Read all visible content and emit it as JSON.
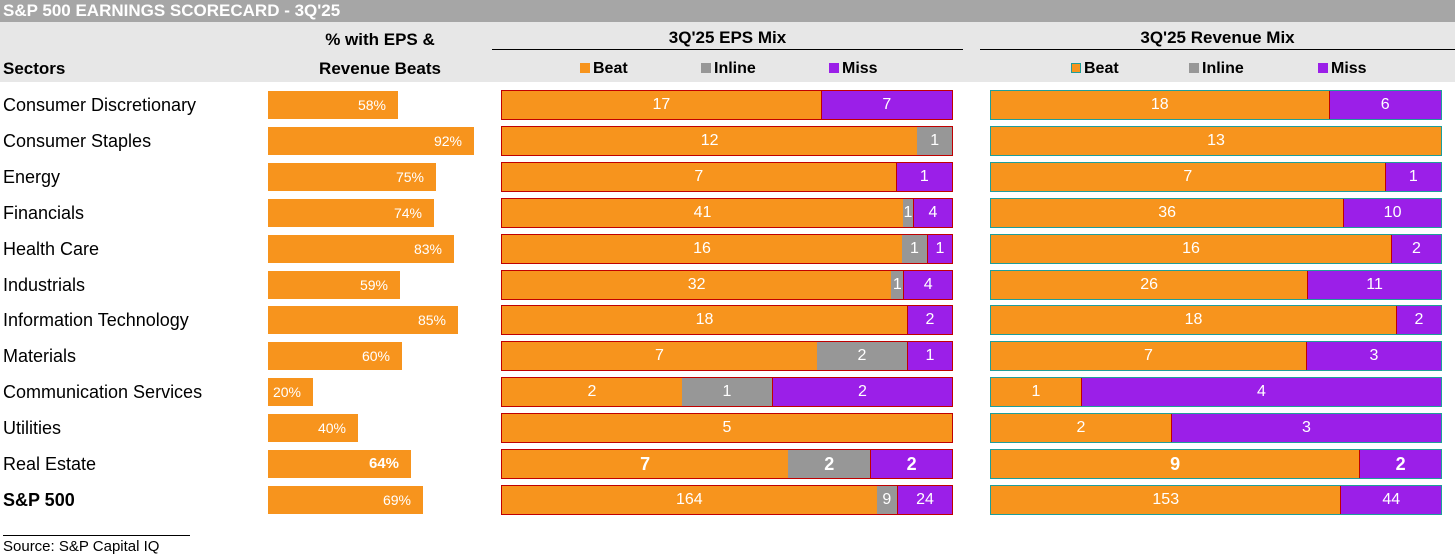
{
  "title": "S&P 500 EARNINGS SCORECARD - 3Q'25",
  "headers": {
    "sectors": "Sectors",
    "pct_line1": "% with EPS &",
    "pct_line2": "Revenue Beats",
    "eps_mix": "3Q'25 EPS Mix",
    "rev_mix": "3Q'25 Revenue Mix"
  },
  "legend": {
    "beat": "Beat",
    "inline": "Inline",
    "miss": "Miss"
  },
  "colors": {
    "beat": "#f7941d",
    "inline": "#979797",
    "miss": "#9b1fe8",
    "header_bar": "#a6a6a6",
    "band": "#e7e7e7"
  },
  "source": "Source: S&P Capital IQ",
  "chart_data": {
    "type": "bar",
    "title": "S&P 500 EARNINGS SCORECARD - 3Q'25",
    "categories": [
      "Consumer Discretionary",
      "Consumer Staples",
      "Energy",
      "Financials",
      "Health Care",
      "Industrials",
      "Information Technology",
      "Materials",
      "Communication Services",
      "Utilities",
      "Real Estate",
      "S&P 500"
    ],
    "rows": [
      {
        "sector": "Consumer Discretionary",
        "pct": 58,
        "pct_label": "58%",
        "eps": [
          17,
          0,
          7
        ],
        "rev": [
          18,
          0,
          6
        ]
      },
      {
        "sector": "Consumer Staples",
        "pct": 92,
        "pct_label": "92%",
        "eps": [
          12,
          1,
          0
        ],
        "rev": [
          13,
          0,
          0
        ]
      },
      {
        "sector": "Energy",
        "pct": 75,
        "pct_label": "75%",
        "eps": [
          7,
          0,
          1
        ],
        "rev": [
          7,
          0,
          1
        ]
      },
      {
        "sector": "Financials",
        "pct": 74,
        "pct_label": "74%",
        "eps": [
          41,
          1,
          4
        ],
        "rev": [
          36,
          0,
          10
        ]
      },
      {
        "sector": "Health Care",
        "pct": 83,
        "pct_label": "83%",
        "eps": [
          16,
          1,
          1
        ],
        "rev": [
          16,
          0,
          2
        ]
      },
      {
        "sector": "Industrials",
        "pct": 59,
        "pct_label": "59%",
        "eps": [
          32,
          1,
          4
        ],
        "rev": [
          26,
          0,
          11
        ]
      },
      {
        "sector": "Information Technology",
        "pct": 85,
        "pct_label": "85%",
        "eps": [
          18,
          0,
          2
        ],
        "rev": [
          18,
          0,
          2
        ]
      },
      {
        "sector": "Materials",
        "pct": 60,
        "pct_label": "60%",
        "eps": [
          7,
          2,
          1
        ],
        "rev": [
          7,
          0,
          3
        ]
      },
      {
        "sector": "Communication Services",
        "pct": 20,
        "pct_label": "20%",
        "eps": [
          2,
          1,
          2
        ],
        "rev": [
          1,
          0,
          4
        ]
      },
      {
        "sector": "Utilities",
        "pct": 40,
        "pct_label": "40%",
        "eps": [
          5,
          0,
          0
        ],
        "rev": [
          2,
          0,
          3
        ]
      },
      {
        "sector": "Real Estate",
        "pct": 64,
        "pct_label": "64%",
        "eps": [
          7,
          2,
          2
        ],
        "rev": [
          9,
          0,
          2
        ],
        "emphasis": true
      },
      {
        "sector": "S&P 500",
        "pct": 69,
        "pct_label": "69%",
        "eps": [
          164,
          9,
          24
        ],
        "rev": [
          153,
          0,
          44
        ],
        "total": true
      }
    ],
    "series": [
      {
        "name": "Beat"
      },
      {
        "name": "Inline"
      },
      {
        "name": "Miss"
      }
    ],
    "pct_axis_max": 100
  }
}
